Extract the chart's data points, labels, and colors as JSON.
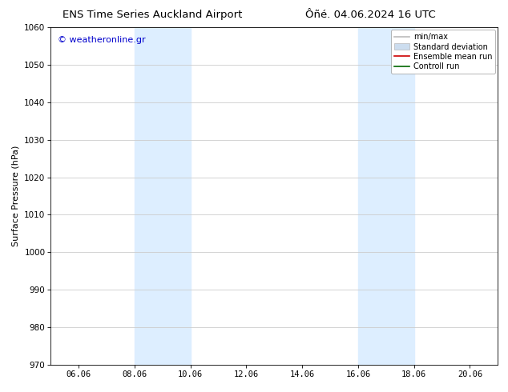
{
  "title_left": "ENS Time Series Auckland Airport",
  "title_right": "Ôñé. 04.06.2024 16 UTC",
  "ylabel": "Surface Pressure (hPa)",
  "ylim": [
    970,
    1060
  ],
  "yticks": [
    970,
    980,
    990,
    1000,
    1010,
    1020,
    1030,
    1040,
    1050,
    1060
  ],
  "xtick_labels": [
    "06.06",
    "08.06",
    "10.06",
    "12.06",
    "14.06",
    "16.06",
    "18.06",
    "20.06"
  ],
  "xtick_positions": [
    1.0,
    3.0,
    5.0,
    7.0,
    9.0,
    11.0,
    13.0,
    15.0
  ],
  "xlim": [
    0,
    16
  ],
  "shaded_regions": [
    {
      "x_start": 3.0,
      "x_end": 5.0,
      "color": "#ddeeff"
    },
    {
      "x_start": 11.0,
      "x_end": 13.0,
      "color": "#ddeeff"
    }
  ],
  "watermark_text": "© weatheronline.gr",
  "watermark_color": "#0000cc",
  "legend_items": [
    {
      "label": "min/max",
      "color": "#bbbbbb",
      "lw": 1.2,
      "ls": "-"
    },
    {
      "label": "Standard deviation",
      "color": "#ccddef",
      "lw": 5,
      "ls": "-"
    },
    {
      "label": "Ensemble mean run",
      "color": "#cc0000",
      "lw": 1.2,
      "ls": "-"
    },
    {
      "label": "Controll run",
      "color": "#006600",
      "lw": 1.2,
      "ls": "-"
    }
  ],
  "background_color": "#ffffff",
  "grid_color": "#cccccc",
  "title_fontsize": 9.5,
  "label_fontsize": 8,
  "tick_fontsize": 7.5,
  "watermark_fontsize": 8,
  "legend_fontsize": 7
}
